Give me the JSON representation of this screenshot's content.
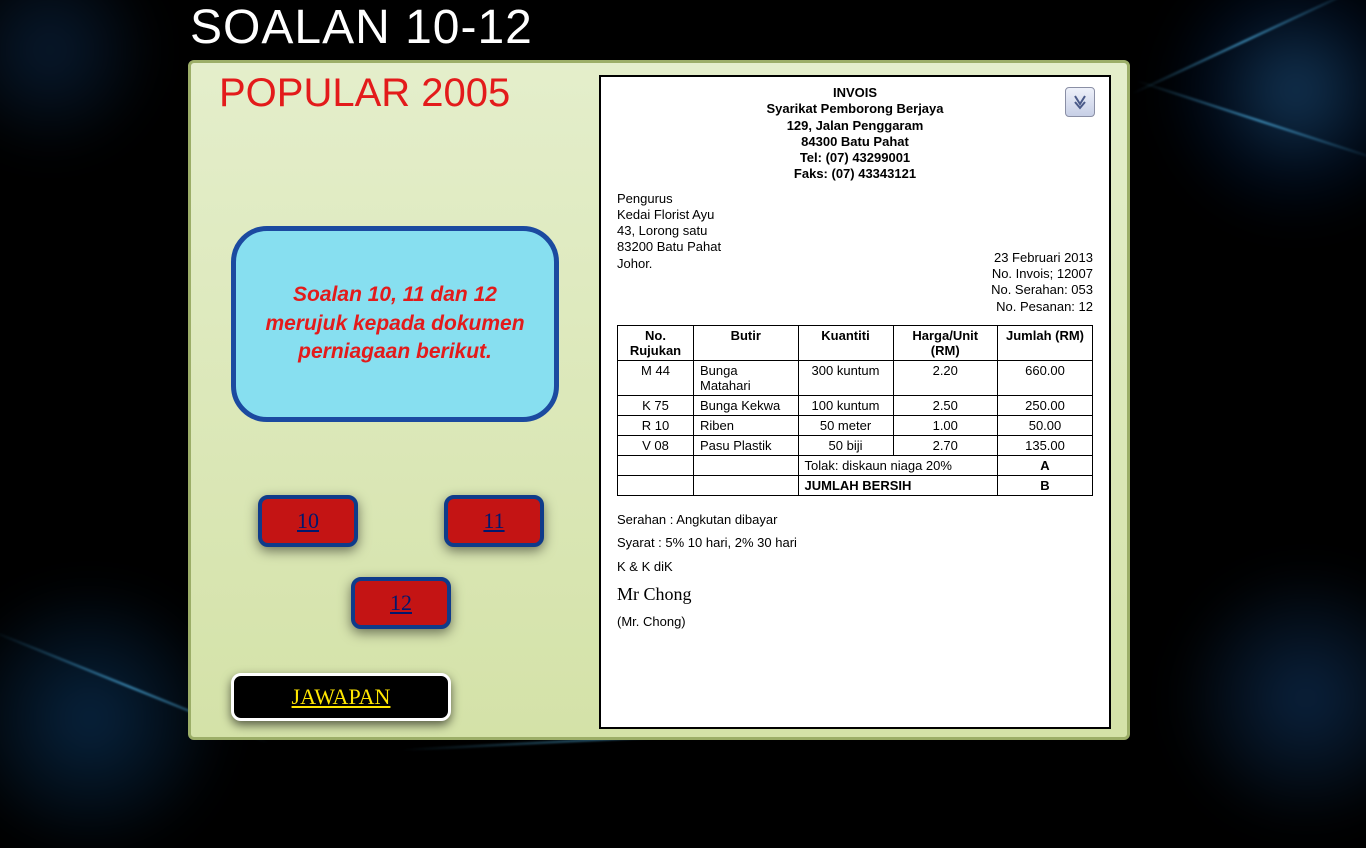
{
  "colors": {
    "background": "#000000",
    "panel_gradient_top": "#e4eecb",
    "panel_gradient_bottom": "#d4e2a8",
    "panel_border": "#9cae68",
    "title_color": "#ffffff",
    "subtitle_color": "#e31b1b",
    "instruction_bg": "#87dff0",
    "instruction_border": "#1b4aa0",
    "instruction_text": "#e31b1b",
    "qbutton_bg": "#c41414",
    "qbutton_border": "#0f3b8a",
    "qbutton_text": "#00186e",
    "answer_bg": "#000000",
    "answer_border": "#ffffff",
    "answer_text": "#ffe600",
    "invoice_bg": "#ffffff",
    "invoice_border": "#000000"
  },
  "slide": {
    "title": "SOALAN 10-12",
    "subtitle": "POPULAR 2005"
  },
  "instruction": "Soalan 10, 11 dan 12 merujuk kepada dokumen perniagaan berikut.",
  "question_buttons": {
    "b1": "10",
    "b2": "11",
    "b3": "12"
  },
  "answer_button": "JAWAPAN",
  "invoice": {
    "doc_title": "INVOIS",
    "company": "Syarikat Pemborong Berjaya",
    "addr1": "129, Jalan Penggaram",
    "addr2": "84300 Batu Pahat",
    "tel": "Tel: (07) 43299001",
    "fax": "Faks: (07) 43343121",
    "to_line1": "Pengurus",
    "to_line2": "Kedai Florist  Ayu",
    "to_line3": "43, Lorong satu",
    "to_line4": "83200 Batu Pahat",
    "to_line5": "Johor.",
    "meta_date": "23 Februari 2013",
    "meta_invno": "No. Invois; 12007",
    "meta_serahan": "No. Serahan: 053",
    "meta_pesanan": "No. Pesanan: 12",
    "table": {
      "headers": {
        "c1": "No. Rujukan",
        "c2": "Butir",
        "c3": "Kuantiti",
        "c4": "Harga/Unit (RM)",
        "c5": "Jumlah (RM)"
      },
      "rows": [
        {
          "ref": "M 44",
          "item": "Bunga Matahari",
          "qty": "300 kuntum",
          "price": "2.20",
          "total": "660.00"
        },
        {
          "ref": "K 75",
          "item": "Bunga Kekwa",
          "qty": "100 kuntum",
          "price": "2.50",
          "total": "250.00"
        },
        {
          "ref": "R 10",
          "item": "Riben",
          "qty": "50 meter",
          "price": "1.00",
          "total": "50.00"
        },
        {
          "ref": "V 08",
          "item": "Pasu Plastik",
          "qty": "50 biji",
          "price": "2.70",
          "total": "135.00"
        }
      ],
      "discount_label": "Tolak: diskaun niaga 20%",
      "discount_val": "A",
      "net_label": "JUMLAH BERSIH",
      "net_val": "B"
    },
    "foot_serahan": "Serahan : Angkutan dibayar",
    "foot_syarat": "Syarat : 5% 10 hari, 2% 30 hari",
    "foot_kk": "K & K diK",
    "signature": "Mr Chong",
    "signatory": "(Mr. Chong)"
  }
}
